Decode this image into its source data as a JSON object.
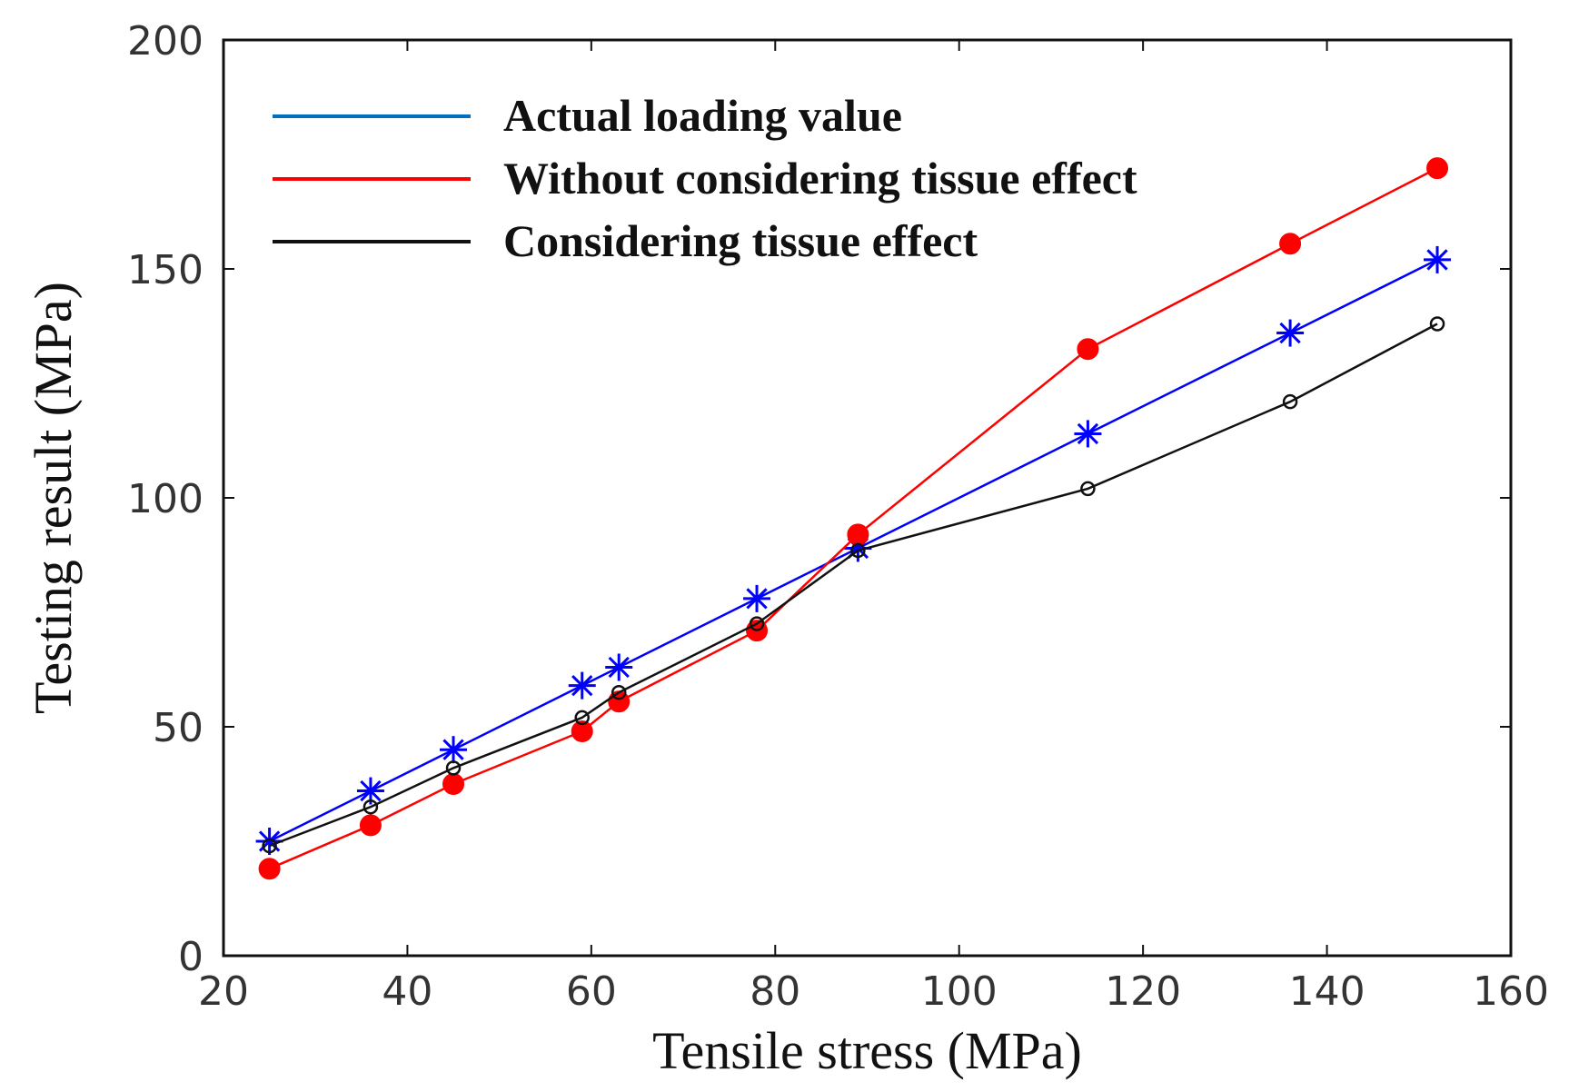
{
  "chart_data": {
    "type": "line",
    "title": "",
    "xlabel": "Tensile stress (MPa)",
    "ylabel": "Testing result (MPa)",
    "xlim": [
      20,
      160
    ],
    "ylim": [
      0,
      200
    ],
    "xticks": [
      20,
      40,
      60,
      80,
      100,
      120,
      140,
      160
    ],
    "yticks": [
      0,
      50,
      100,
      150,
      200
    ],
    "grid": false,
    "legend_position": "top-left",
    "series": [
      {
        "name": "Actual loading value",
        "color": "#0000ff",
        "legend_color": "#0070c0",
        "marker": "asterisk",
        "x": [
          25,
          36,
          45,
          59,
          63,
          78,
          89,
          114,
          136,
          152
        ],
        "y": [
          25,
          36,
          45,
          59,
          63,
          78,
          89,
          114,
          136,
          152
        ]
      },
      {
        "name": "Without considering tissue effect",
        "color": "#ff0000",
        "legend_color": "#ff0000",
        "marker": "filled-circle",
        "x": [
          25,
          36,
          45,
          59,
          63,
          78,
          89,
          114,
          136,
          152
        ],
        "y": [
          19,
          28.5,
          37.5,
          49,
          55.5,
          71,
          92,
          132.5,
          155.5,
          172
        ]
      },
      {
        "name": "Considering tissue effect",
        "color": "#111111",
        "legend_color": "#111111",
        "marker": "open-circle",
        "x": [
          25,
          36,
          45,
          59,
          63,
          78,
          89,
          114,
          136,
          152
        ],
        "y": [
          24,
          32.5,
          41,
          52,
          57.5,
          72.5,
          88.5,
          102,
          121,
          138
        ]
      }
    ]
  }
}
